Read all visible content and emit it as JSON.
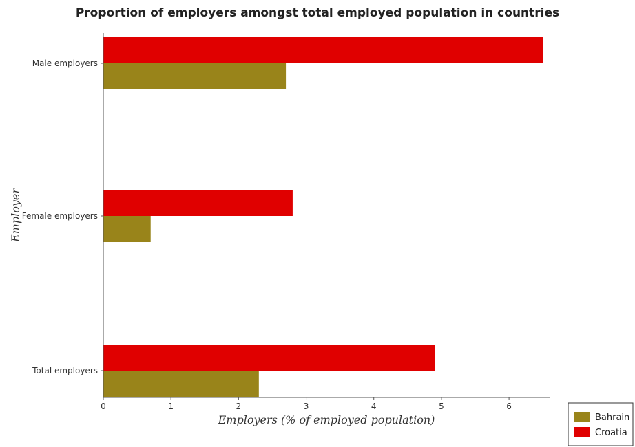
{
  "chart_data": {
    "type": "bar",
    "orientation": "horizontal",
    "title": "Proportion of employers amongst total employed population in countries",
    "xlabel": "Employers (% of employed population)",
    "ylabel": "Employer",
    "categories": [
      "Total employers",
      "Female employers",
      "Male employers"
    ],
    "series": [
      {
        "name": "Bahrain",
        "color": "#99841a",
        "values": [
          2.3,
          0.7,
          2.7
        ]
      },
      {
        "name": "Croatia",
        "color": "#e00000",
        "values": [
          4.9,
          2.8,
          6.5
        ]
      }
    ],
    "xlim": [
      0,
      6.6
    ],
    "xticks": [
      0,
      1,
      2,
      3,
      4,
      5,
      6
    ],
    "legend_position": "bottom-right",
    "grid": false
  }
}
